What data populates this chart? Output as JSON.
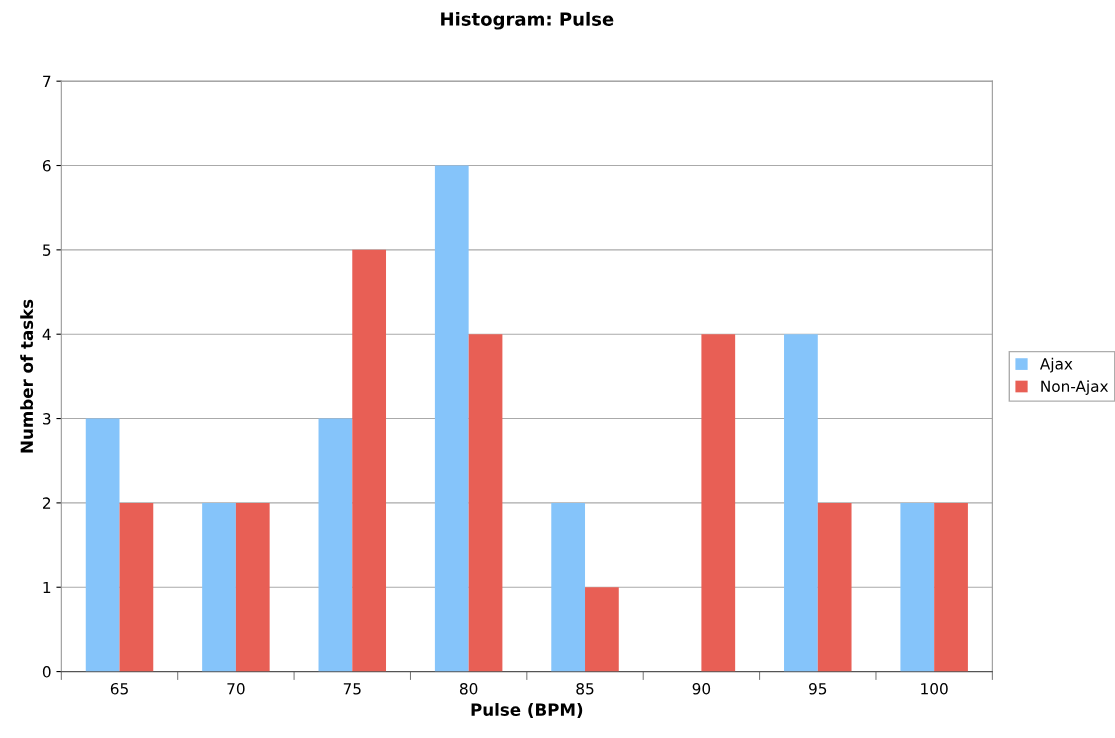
{
  "chart_data": {
    "type": "bar",
    "title": "Histogram: Pulse",
    "xlabel": "Pulse (BPM)",
    "ylabel": "Number of tasks",
    "categories": [
      "65",
      "70",
      "75",
      "80",
      "85",
      "90",
      "95",
      "100"
    ],
    "series": [
      {
        "name": "Ajax",
        "color": "#85c4fa",
        "values": [
          3,
          2,
          3,
          6,
          2,
          0,
          4,
          2
        ]
      },
      {
        "name": "Non-Ajax",
        "color": "#e85f55",
        "values": [
          2,
          2,
          5,
          4,
          1,
          4,
          2,
          2
        ]
      }
    ],
    "ylim": [
      0,
      7
    ],
    "yticks": [
      0,
      1,
      2,
      3,
      4,
      5,
      6,
      7
    ],
    "grid": "y",
    "legend": "right"
  }
}
